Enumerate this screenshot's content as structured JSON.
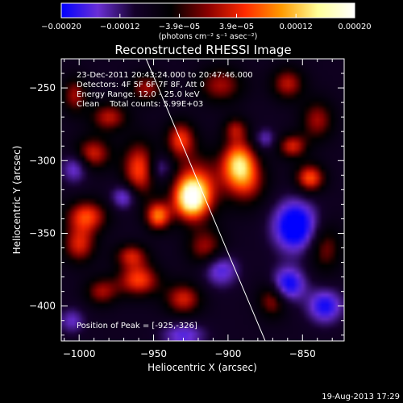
{
  "chart_data": {
    "type": "heatmap",
    "title": "Reconstructed RHESSI Image",
    "xlabel": "Heliocentric X (arcsec)",
    "ylabel": "Heliocentric Y (arcsec)",
    "xlim": [
      -1012,
      -822
    ],
    "ylim": [
      -424,
      -230
    ],
    "x_ticks": [
      -1000,
      -950,
      -900,
      -850
    ],
    "y_ticks": [
      -250,
      -300,
      -350,
      -400
    ],
    "x_tick_labels": [
      "−1000",
      "−950",
      "−900",
      "−850"
    ],
    "y_tick_labels": [
      "−250",
      "−300",
      "−350",
      "−400"
    ],
    "colorbar": {
      "range": [
        -0.0002,
        0.0002
      ],
      "tick_values": [
        -0.0002,
        -0.00012,
        -3.9e-05,
        3.9e-05,
        0.00012,
        0.0002
      ],
      "tick_labels": [
        "−0.00020",
        "−0.00012",
        "−3.9e−05",
        "3.9e−05",
        "0.00012",
        "0.00020"
      ],
      "unit_label": "(photons cm⁻² s⁻¹ asec⁻²)",
      "colors": [
        "#0000ff",
        "#6a2fd6",
        "#14002a",
        "#000000",
        "#8a0000",
        "#ff2a00",
        "#ff9a00",
        "#ffff99",
        "#ffffff"
      ]
    },
    "annotations": [
      "23-Dec-2011 20:43:24.000 to 20:47:46.000",
      "Detectors: 4F 5F 6F 7F 8F, Att 0",
      "Energy Range: 12.0 - 25.0 keV",
      "Clean    Total counts: 5.99E+03"
    ],
    "peak_label": "Position of Peak = [-925,-326]",
    "peak": [
      -925,
      -326
    ],
    "limb_line": [
      [
        -955,
        -230
      ],
      [
        -875,
        -424
      ]
    ],
    "blobs": [
      {
        "x": -925,
        "y": -326,
        "sx": 8,
        "sy": 10,
        "v": 1.0
      },
      {
        "x": -920,
        "y": -317,
        "sx": 12,
        "sy": 16,
        "v": 0.55
      },
      {
        "x": -893,
        "y": -301,
        "sx": 8,
        "sy": 11,
        "v": 0.85
      },
      {
        "x": -887,
        "y": -315,
        "sx": 10,
        "sy": 12,
        "v": 0.5
      },
      {
        "x": -960,
        "y": -306,
        "sx": 8,
        "sy": 14,
        "v": 0.7
      },
      {
        "x": -932,
        "y": -285,
        "sx": 7,
        "sy": 9,
        "v": 0.65
      },
      {
        "x": -947,
        "y": -338,
        "sx": 6,
        "sy": 7,
        "v": 0.8
      },
      {
        "x": -991,
        "y": -295,
        "sx": 9,
        "sy": 8,
        "v": 0.6
      },
      {
        "x": -980,
        "y": -270,
        "sx": 9,
        "sy": 7,
        "v": 0.55
      },
      {
        "x": -1003,
        "y": -255,
        "sx": 6,
        "sy": 9,
        "v": 0.5
      },
      {
        "x": -955,
        "y": -250,
        "sx": 8,
        "sy": 7,
        "v": 0.5
      },
      {
        "x": -905,
        "y": -248,
        "sx": 11,
        "sy": 9,
        "v": 0.5
      },
      {
        "x": -860,
        "y": -247,
        "sx": 8,
        "sy": 8,
        "v": 0.55
      },
      {
        "x": -840,
        "y": -272,
        "sx": 8,
        "sy": 10,
        "v": 0.5
      },
      {
        "x": -845,
        "y": -312,
        "sx": 7,
        "sy": 7,
        "v": 0.75
      },
      {
        "x": -857,
        "y": -290,
        "sx": 7,
        "sy": 6,
        "v": 0.6
      },
      {
        "x": -995,
        "y": -338,
        "sx": 10,
        "sy": 8,
        "v": 0.7
      },
      {
        "x": -1000,
        "y": -358,
        "sx": 8,
        "sy": 9,
        "v": 0.6
      },
      {
        "x": -965,
        "y": -365,
        "sx": 8,
        "sy": 6,
        "v": 0.55
      },
      {
        "x": -960,
        "y": -382,
        "sx": 10,
        "sy": 8,
        "v": 0.7
      },
      {
        "x": -930,
        "y": -395,
        "sx": 9,
        "sy": 8,
        "v": 0.6
      },
      {
        "x": -915,
        "y": -360,
        "sx": 9,
        "sy": 9,
        "v": 0.5
      },
      {
        "x": -985,
        "y": -390,
        "sx": 8,
        "sy": 7,
        "v": 0.5
      },
      {
        "x": -870,
        "y": -395,
        "sx": 7,
        "sy": 9,
        "v": 0.55
      },
      {
        "x": -835,
        "y": -360,
        "sx": 8,
        "sy": 12,
        "v": 0.45
      },
      {
        "x": -895,
        "y": -278,
        "sx": 6,
        "sy": 6,
        "v": 0.45
      },
      {
        "x": -970,
        "y": -325,
        "sx": 6,
        "sy": 6,
        "v": -0.55
      },
      {
        "x": -855,
        "y": -345,
        "sx": 10,
        "sy": 12,
        "v": -1.0
      },
      {
        "x": -860,
        "y": -385,
        "sx": 8,
        "sy": 8,
        "v": -0.8
      },
      {
        "x": -835,
        "y": -400,
        "sx": 8,
        "sy": 8,
        "v": -0.7
      },
      {
        "x": -905,
        "y": -375,
        "sx": 8,
        "sy": 8,
        "v": -0.55
      },
      {
        "x": -930,
        "y": -420,
        "sx": 10,
        "sy": 6,
        "v": -0.5
      },
      {
        "x": -1003,
        "y": -305,
        "sx": 6,
        "sy": 7,
        "v": -0.5
      },
      {
        "x": -1005,
        "y": -410,
        "sx": 6,
        "sy": 6,
        "v": -0.4
      },
      {
        "x": -875,
        "y": -285,
        "sx": 5,
        "sy": 5,
        "v": -0.4
      },
      {
        "x": -945,
        "y": -305,
        "sx": 5,
        "sy": 6,
        "v": -0.4
      }
    ]
  },
  "footer": {
    "timestamp": "19-Aug-2013 17:29"
  }
}
